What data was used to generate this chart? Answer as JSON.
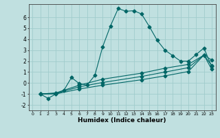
{
  "background_color": "#c0e0e0",
  "grid_color": "#a0cccc",
  "line_color": "#006666",
  "xlabel": "Humidex (Indice chaleur)",
  "xlim": [
    -0.5,
    23.5
  ],
  "ylim": [
    -2.5,
    7.2
  ],
  "yticks": [
    -2,
    -1,
    0,
    1,
    2,
    3,
    4,
    5,
    6
  ],
  "xticks": [
    0,
    1,
    2,
    3,
    4,
    5,
    6,
    7,
    8,
    9,
    10,
    11,
    12,
    13,
    14,
    15,
    16,
    17,
    18,
    19,
    20,
    21,
    22,
    23
  ],
  "series1_x": [
    1,
    2,
    3,
    4,
    5,
    6,
    7,
    8,
    9,
    10,
    11,
    12,
    13,
    14,
    15,
    16,
    17,
    18,
    19,
    20,
    21,
    22,
    23
  ],
  "series1_y": [
    -1.0,
    -1.4,
    -1.0,
    -0.7,
    0.5,
    -0.05,
    -0.2,
    0.7,
    3.3,
    5.2,
    6.8,
    6.55,
    6.6,
    6.3,
    5.15,
    3.9,
    3.0,
    2.5,
    2.0,
    2.0,
    2.6,
    3.2,
    1.5
  ],
  "series2_x": [
    1,
    3,
    6,
    9,
    14,
    17,
    20,
    22,
    23
  ],
  "series2_y": [
    -1.0,
    -0.9,
    -0.2,
    0.35,
    0.9,
    1.35,
    1.7,
    2.55,
    2.1
  ],
  "series3_x": [
    1,
    3,
    6,
    9,
    14,
    17,
    20,
    22,
    23
  ],
  "series3_y": [
    -1.0,
    -0.95,
    -0.35,
    0.05,
    0.6,
    1.0,
    1.4,
    2.55,
    1.6
  ],
  "series4_x": [
    1,
    3,
    6,
    9,
    14,
    17,
    20,
    22,
    23
  ],
  "series4_y": [
    -1.0,
    -1.0,
    -0.55,
    -0.2,
    0.3,
    0.65,
    1.05,
    2.55,
    1.25
  ]
}
